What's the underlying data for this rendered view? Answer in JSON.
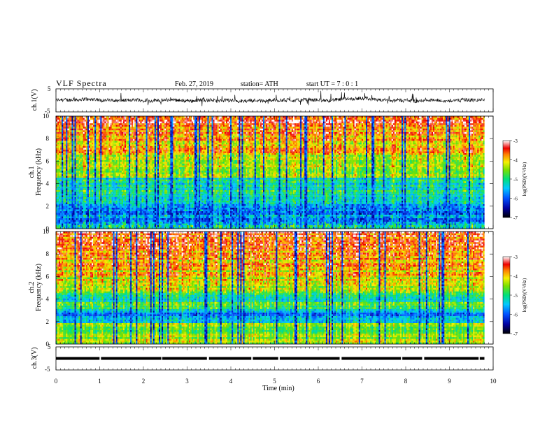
{
  "header": {
    "title": "VLF Spectra",
    "date": "Feb. 27, 2019",
    "station": "station= ATH",
    "start": "start UT = 7 : 0 : 1"
  },
  "chart_data": [
    {
      "type": "line",
      "id": "ch1-waveform",
      "ylabel": "ch.1(V)",
      "ylim": [
        -5,
        5
      ],
      "yticks": [
        "5",
        "-5"
      ],
      "xlim": [
        0,
        10
      ],
      "description_values": {
        "baseline": 0.0,
        "noise_amplitude": 1.5
      }
    },
    {
      "type": "heatmap",
      "id": "ch1-spectrogram",
      "ylabel_line1": "ch.1",
      "ylabel_line2": "Frequency (kHz)",
      "ylim": [
        0,
        10
      ],
      "yticks": [
        "0",
        "2",
        "4",
        "6",
        "8",
        "10"
      ],
      "xlim": [
        0,
        9.8
      ],
      "colorbar": {
        "label": "log(PSD)(V²/Hz)",
        "range": [
          -7,
          -3
        ],
        "ticks": [
          "-3",
          "-4",
          "-5",
          "-6",
          "-7"
        ]
      }
    },
    {
      "type": "heatmap",
      "id": "ch2-spectrogram",
      "ylabel_line1": "ch.2",
      "ylabel_line2": "Frequency (kHz)",
      "ylim": [
        0,
        10
      ],
      "yticks": [
        "0",
        "2",
        "4",
        "6",
        "8",
        "10"
      ],
      "xlim": [
        0,
        9.8
      ],
      "colorbar": {
        "label": "log(PSD)(V²/Hz)",
        "range": [
          -7,
          -3
        ],
        "ticks": [
          "-3",
          "-4",
          "-5",
          "-6",
          "-7"
        ]
      }
    },
    {
      "type": "line",
      "id": "ch3-waveform",
      "ylabel": "ch.3(V)",
      "ylim": [
        -5,
        5
      ],
      "yticks": [
        "5",
        "-5"
      ],
      "xlim": [
        0,
        10
      ],
      "description_values": {
        "baseline": 0.0
      }
    }
  ],
  "xaxis": {
    "label": "Time (min)",
    "ticks": [
      "0",
      "1",
      "2",
      "3",
      "4",
      "5",
      "6",
      "7",
      "8",
      "9",
      "10"
    ],
    "range": [
      0,
      10
    ]
  }
}
